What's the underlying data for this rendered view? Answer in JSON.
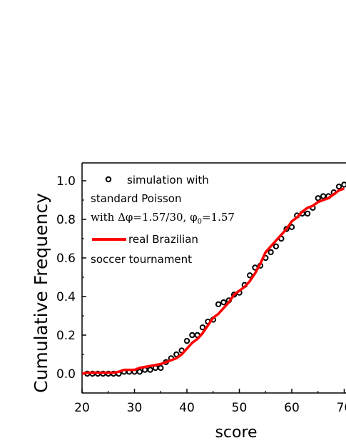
{
  "chart_data": {
    "type": "line",
    "xlabel": "score",
    "ylabel": "Cumulative Frequency",
    "xlim": [
      20,
      70
    ],
    "ylim": [
      -0.1,
      1.1
    ],
    "x_ticks": [
      "20",
      "30",
      "40",
      "50",
      "60",
      "70"
    ],
    "y_ticks": [
      "0.0",
      "0.2",
      "0.4",
      "0.6",
      "0.8",
      "1.0"
    ],
    "grid": false,
    "legend_position": "top-left",
    "legend": {
      "sim_line1": "simulation with",
      "sim_line2": "standard Poisson",
      "sim_line3_prefix": "with Δφ=1.57/30, φ",
      "sim_line3_sub": "0",
      "sim_line3_suffix": "=1.57",
      "real_line1": "real Brazilian",
      "real_line2": "soccer tournament"
    },
    "series": [
      {
        "name": "simulation with standard Poisson with Δφ=1.57/30, φ0=1.57",
        "marker": "open-circle",
        "color": "#000000",
        "x": [
          21,
          22,
          23,
          24,
          25,
          26,
          27,
          28,
          29,
          30,
          31,
          32,
          33,
          34,
          35,
          36,
          37,
          38,
          39,
          40,
          41,
          42,
          43,
          44,
          45,
          46,
          47,
          48,
          49,
          50,
          51,
          52,
          53,
          54,
          55,
          56,
          57,
          58,
          59,
          60,
          61,
          62,
          63,
          64,
          65,
          66,
          67,
          68,
          69,
          70
        ],
        "y": [
          0.0,
          0.0,
          0.0,
          0.0,
          0.0,
          0.0,
          0.0,
          0.01,
          0.01,
          0.01,
          0.01,
          0.02,
          0.02,
          0.03,
          0.03,
          0.06,
          0.08,
          0.1,
          0.12,
          0.17,
          0.2,
          0.2,
          0.24,
          0.27,
          0.28,
          0.36,
          0.37,
          0.38,
          0.41,
          0.42,
          0.46,
          0.51,
          0.55,
          0.56,
          0.6,
          0.63,
          0.66,
          0.7,
          0.75,
          0.76,
          0.82,
          0.83,
          0.83,
          0.86,
          0.91,
          0.92,
          0.92,
          0.94,
          0.97,
          0.98
        ]
      },
      {
        "name": "real Brazilian soccer tournament",
        "marker": "line",
        "color": "#ff0000",
        "x": [
          20,
          21,
          22,
          23,
          24,
          25,
          26,
          27,
          28,
          29,
          30,
          31,
          32,
          33,
          34,
          35,
          36,
          37,
          38,
          39,
          40,
          41,
          42,
          43,
          44,
          45,
          46,
          47,
          48,
          49,
          50,
          51,
          52,
          53,
          54,
          55,
          56,
          57,
          58,
          59,
          60,
          61,
          62,
          63,
          64,
          65,
          66,
          67,
          68,
          69,
          70
        ],
        "y": [
          0.0,
          0.005,
          0.005,
          0.005,
          0.005,
          0.005,
          0.005,
          0.01,
          0.02,
          0.02,
          0.02,
          0.03,
          0.035,
          0.04,
          0.045,
          0.05,
          0.06,
          0.07,
          0.08,
          0.1,
          0.13,
          0.16,
          0.18,
          0.21,
          0.25,
          0.29,
          0.31,
          0.34,
          0.37,
          0.41,
          0.43,
          0.45,
          0.48,
          0.52,
          0.57,
          0.63,
          0.66,
          0.69,
          0.72,
          0.75,
          0.79,
          0.81,
          0.84,
          0.86,
          0.87,
          0.89,
          0.9,
          0.91,
          0.93,
          0.95,
          0.96
        ]
      }
    ]
  }
}
